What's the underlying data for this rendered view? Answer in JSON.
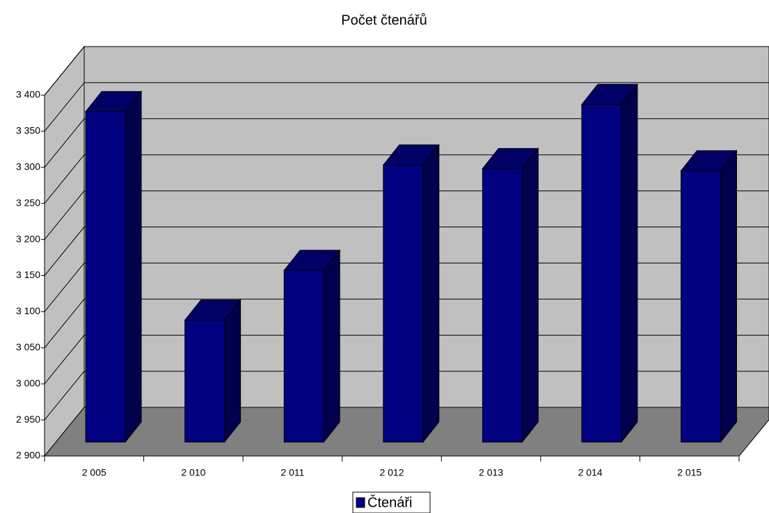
{
  "chart_data": {
    "type": "bar3d",
    "title": "Počet čtenářů",
    "categories": [
      "2 005",
      "2 010",
      "2 011",
      "2 012",
      "2 013",
      "2 014",
      "2 015"
    ],
    "series": [
      {
        "name": "Čtenáři",
        "color": "#000080",
        "values": [
          3358,
          3069,
          3138,
          3284,
          3279,
          3368,
          3276
        ]
      }
    ],
    "ylim": [
      2900,
      3400
    ],
    "yticks": [
      {
        "value": 2900,
        "label": "2 900"
      },
      {
        "value": 2950,
        "label": "2 950"
      },
      {
        "value": 3000,
        "label": "3 000"
      },
      {
        "value": 3050,
        "label": "3 050"
      },
      {
        "value": 3100,
        "label": "3 100"
      },
      {
        "value": 3150,
        "label": "3 150"
      },
      {
        "value": 3200,
        "label": "3 200"
      },
      {
        "value": 3250,
        "label": "3 250"
      },
      {
        "value": 3300,
        "label": "3 300"
      },
      {
        "value": 3350,
        "label": "3 350"
      },
      {
        "value": 3400,
        "label": "3 400"
      }
    ],
    "grid": true,
    "legend": "bottom"
  }
}
